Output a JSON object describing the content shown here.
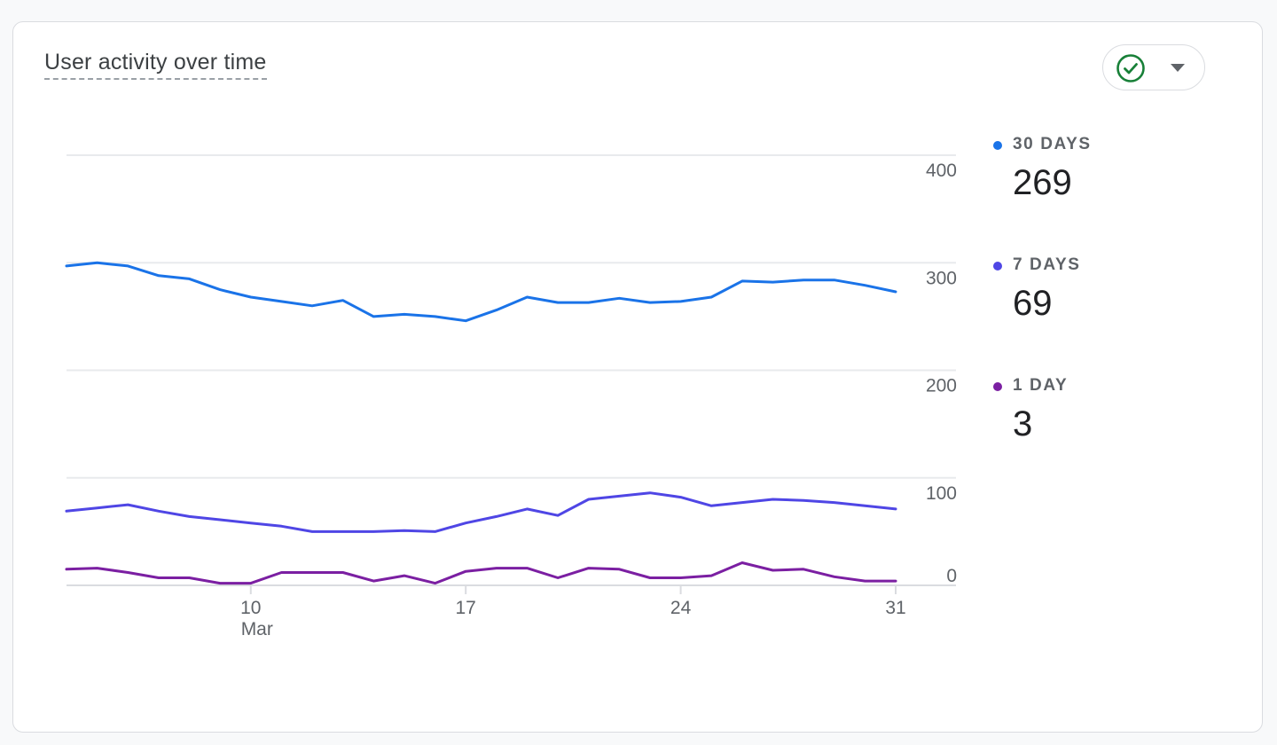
{
  "card": {
    "title": "User activity over time"
  },
  "status_button": {
    "icon": "check-circle-icon",
    "menu_icon": "caret-down-icon",
    "check_color": "#188038"
  },
  "legend": [
    {
      "label": "30 DAYS",
      "value": "269",
      "color": "#1a73e8"
    },
    {
      "label": "7 DAYS",
      "value": "69",
      "color": "#4f46e5"
    },
    {
      "label": "1 DAY",
      "value": "3",
      "color": "#7b1fa2"
    }
  ],
  "chart_data": {
    "type": "line",
    "x_axis_type": "date",
    "x": [
      "2024-03-04",
      "2024-03-05",
      "2024-03-06",
      "2024-03-07",
      "2024-03-08",
      "2024-03-09",
      "2024-03-10",
      "2024-03-11",
      "2024-03-12",
      "2024-03-13",
      "2024-03-14",
      "2024-03-15",
      "2024-03-16",
      "2024-03-17",
      "2024-03-18",
      "2024-03-19",
      "2024-03-20",
      "2024-03-21",
      "2024-03-22",
      "2024-03-23",
      "2024-03-24",
      "2024-03-25",
      "2024-03-26",
      "2024-03-27",
      "2024-03-28",
      "2024-03-29",
      "2024-03-30",
      "2024-03-31"
    ],
    "x_ticks": [
      {
        "date": "2024-03-10",
        "label": "10",
        "sublabel": "Mar"
      },
      {
        "date": "2024-03-17",
        "label": "17",
        "sublabel": ""
      },
      {
        "date": "2024-03-24",
        "label": "24",
        "sublabel": ""
      },
      {
        "date": "2024-03-31",
        "label": "31",
        "sublabel": ""
      }
    ],
    "y_ticks": [
      0,
      100,
      200,
      300,
      400
    ],
    "ylim": [
      0,
      400
    ],
    "y_axis_position": "right",
    "grid": true,
    "legend_position": "right",
    "series": [
      {
        "name": "30 DAYS",
        "color": "#1a73e8",
        "values": [
          297,
          300,
          297,
          288,
          285,
          275,
          268,
          264,
          260,
          265,
          250,
          252,
          250,
          246,
          256,
          268,
          263,
          263,
          267,
          263,
          264,
          268,
          283,
          282,
          284,
          284,
          279,
          273
        ]
      },
      {
        "name": "7 DAYS",
        "color": "#4f46e5",
        "values": [
          69,
          72,
          75,
          69,
          64,
          61,
          58,
          55,
          50,
          50,
          50,
          51,
          50,
          58,
          64,
          71,
          65,
          80,
          83,
          86,
          82,
          74,
          77,
          80,
          79,
          77,
          74,
          71
        ]
      },
      {
        "name": "1 DAY",
        "color": "#7b1fa2",
        "values": [
          15,
          16,
          12,
          7,
          7,
          2,
          2,
          12,
          12,
          12,
          4,
          9,
          2,
          13,
          16,
          16,
          7,
          16,
          15,
          7,
          7,
          9,
          21,
          14,
          15,
          8,
          4,
          4
        ]
      }
    ]
  }
}
